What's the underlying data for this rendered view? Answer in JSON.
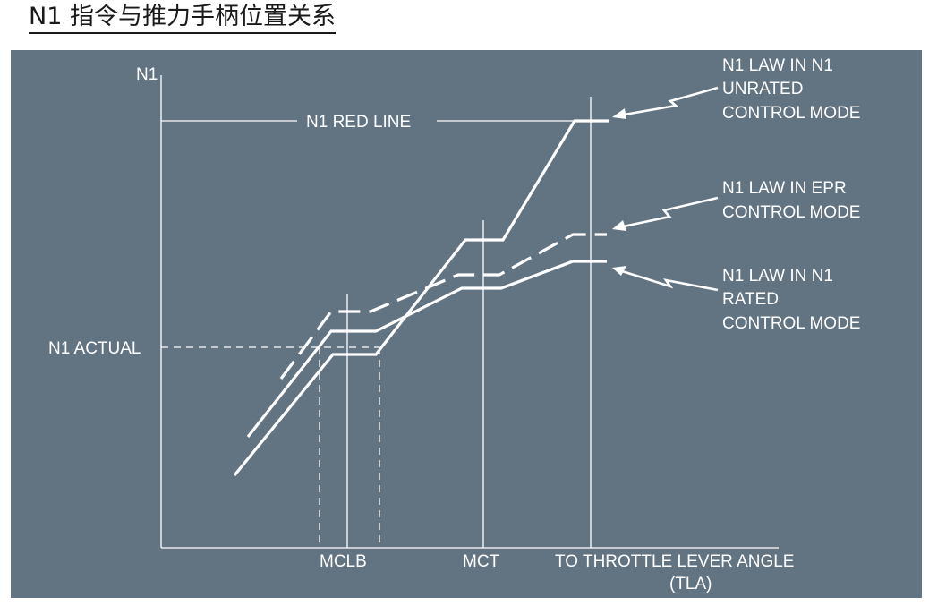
{
  "title": "N1 指令与推力手柄位置关系",
  "diagram": {
    "y_axis_label": "N1",
    "x_axis_labels": {
      "mclb": "MCLB",
      "mct": "MCT",
      "tla_line1": "TO THROTTLE LEVER ANGLE",
      "tla_line2": "(TLA)"
    },
    "red_line_label": "N1 RED LINE",
    "n1_actual_label": "N1 ACTUAL",
    "callouts": {
      "unrated": [
        "N1 LAW IN N1",
        "UNRATED",
        "CONTROL MODE"
      ],
      "epr": [
        "N1 LAW IN EPR",
        "CONTROL MODE"
      ],
      "rated": [
        "N1 LAW IN N1",
        "RATED",
        "CONTROL MODE"
      ]
    },
    "colors": {
      "background": "#627382",
      "lines": "#ffffff"
    }
  }
}
